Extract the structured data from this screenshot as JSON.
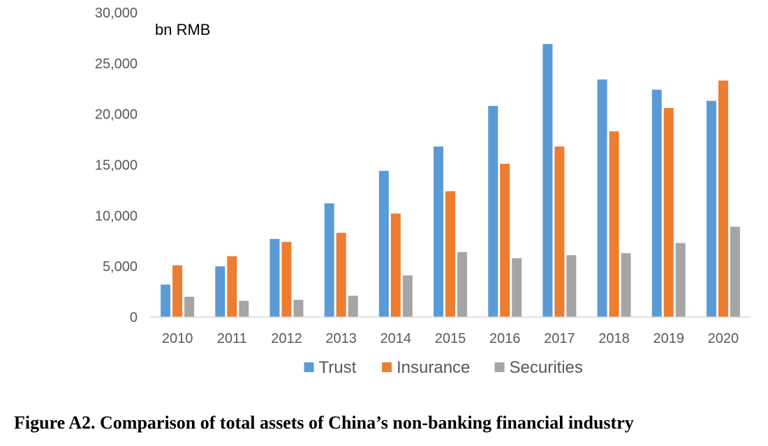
{
  "chart_data": {
    "type": "bar",
    "unit_label": "bn RMB",
    "categories": [
      "2010",
      "2011",
      "2012",
      "2013",
      "2014",
      "2015",
      "2016",
      "2017",
      "2018",
      "2019",
      "2020"
    ],
    "series": [
      {
        "name": "Trust",
        "color": "#5B9BD5",
        "values": [
          3200,
          5000,
          7700,
          11200,
          14400,
          16800,
          20800,
          26900,
          23400,
          22400,
          21300
        ]
      },
      {
        "name": "Insurance",
        "color": "#ED7D31",
        "values": [
          5100,
          6000,
          7400,
          8300,
          10200,
          12400,
          15100,
          16800,
          18300,
          20600,
          23300
        ]
      },
      {
        "name": "Securities",
        "color": "#A5A5A5",
        "values": [
          2000,
          1600,
          1700,
          2100,
          4100,
          6400,
          5800,
          6100,
          6300,
          7300,
          8900
        ]
      }
    ],
    "ylim": [
      0,
      30000
    ],
    "yticks": [
      0,
      5000,
      10000,
      15000,
      20000,
      25000,
      30000
    ],
    "ytick_labels": [
      "0",
      "5,000",
      "10,000",
      "15,000",
      "20,000",
      "25,000",
      "30,000"
    ],
    "grid": false,
    "legend_position": "bottom",
    "caption": "Figure A2. Comparison of total assets of China’s non-banking financial industry"
  }
}
